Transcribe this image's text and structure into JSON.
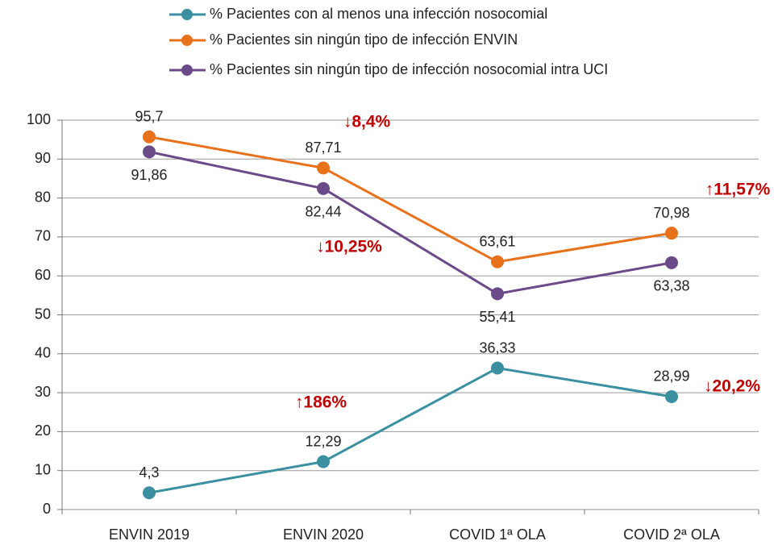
{
  "chart_data": {
    "type": "line",
    "categories": [
      "ENVIN 2019",
      "ENVIN 2020",
      "COVID 1ª OLA",
      "COVID 2ª OLA"
    ],
    "series": [
      {
        "name": "% Pacientes con al menos una infección nosocomial",
        "color": "#3a8fa0",
        "values": [
          4.3,
          12.29,
          36.33,
          28.99
        ],
        "value_labels": [
          "4,3",
          "12,29",
          "36,33",
          "28,99"
        ]
      },
      {
        "name": "% Pacientes sin ningún tipo de infección ENVIN",
        "color": "#e8711c",
        "values": [
          95.7,
          87.71,
          63.61,
          70.98
        ],
        "value_labels": [
          "95,7",
          "87,71",
          "63,61",
          "70,98"
        ]
      },
      {
        "name": "% Pacientes sin ningún tipo de infección nosocomial intra UCI",
        "color": "#6b4a8a",
        "values": [
          91.86,
          82.44,
          55.41,
          63.38
        ],
        "value_labels": [
          "91,86",
          "82,44",
          "55,41",
          "63,38"
        ]
      }
    ],
    "annotations": [
      "↓8,4%",
      "↓10,25%",
      "↑11,57%",
      "↑186%",
      "↓20,2%"
    ],
    "ylim": [
      0,
      100
    ],
    "yticks": [
      0,
      10,
      20,
      30,
      40,
      50,
      60,
      70,
      80,
      90,
      100
    ],
    "grid": true
  }
}
